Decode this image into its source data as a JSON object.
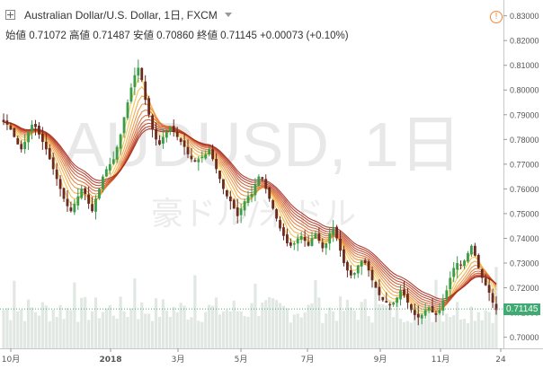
{
  "header": {
    "symbol_title": "Australian Dollar/U.S. Dollar, 1日, FXCM",
    "open_label": "始値",
    "open_value": "0.71072",
    "high_label": "高値",
    "high_value": "0.71487",
    "low_label": "安値",
    "low_value": "0.70860",
    "close_label": "終値",
    "close_value": "0.71145",
    "change": "+0.00073 (+0.10%)"
  },
  "watermark": {
    "line1": "AUDUSD, 1日",
    "line2": "豪ドル/米ドル"
  },
  "icons": {
    "expand": "expand-icon",
    "alert": "alert-icon"
  },
  "colors": {
    "up": "#3b9c4a",
    "down": "#6b2a22",
    "last_price": "#3faa72",
    "ribbon_fast": "#f7d04a",
    "ribbon_slow": "#a8291c",
    "volume": "#d9e2dc"
  },
  "chart_data": {
    "type": "candlestick",
    "title": "Australian Dollar/U.S. Dollar, 1日, FXCM",
    "y_axis_ticks": [
      "0.83000",
      "0.82000",
      "0.81000",
      "0.80000",
      "0.79000",
      "0.78000",
      "0.77000",
      "0.76000",
      "0.75000",
      "0.74000",
      "0.73000",
      "0.72000",
      "0.71000",
      "0.70000"
    ],
    "ylim": [
      0.6955,
      0.8335
    ],
    "x_axis_ticks": [
      "10月",
      "2018",
      "3月",
      "5月",
      "7月",
      "9月",
      "11月",
      "24"
    ],
    "last_price": "0.71145",
    "last_price_value": 0.71145,
    "closes_approx": [
      0.787,
      0.786,
      0.784,
      0.781,
      0.778,
      0.776,
      0.779,
      0.783,
      0.786,
      0.785,
      0.782,
      0.779,
      0.776,
      0.772,
      0.768,
      0.764,
      0.76,
      0.756,
      0.753,
      0.751,
      0.754,
      0.757,
      0.76,
      0.758,
      0.754,
      0.751,
      0.756,
      0.76,
      0.765,
      0.768,
      0.77,
      0.772,
      0.777,
      0.782,
      0.789,
      0.795,
      0.801,
      0.806,
      0.809,
      0.804,
      0.796,
      0.79,
      0.784,
      0.78,
      0.778,
      0.781,
      0.783,
      0.785,
      0.783,
      0.781,
      0.779,
      0.777,
      0.774,
      0.772,
      0.771,
      0.772,
      0.773,
      0.774,
      0.776,
      0.772,
      0.768,
      0.764,
      0.76,
      0.757,
      0.755,
      0.752,
      0.749,
      0.752,
      0.755,
      0.757,
      0.758,
      0.762,
      0.765,
      0.764,
      0.76,
      0.756,
      0.752,
      0.748,
      0.744,
      0.741,
      0.738,
      0.737,
      0.738,
      0.74,
      0.741,
      0.739,
      0.737,
      0.74,
      0.742,
      0.739,
      0.736,
      0.738,
      0.742,
      0.744,
      0.74,
      0.735,
      0.73,
      0.727,
      0.725,
      0.726,
      0.729,
      0.731,
      0.73,
      0.727,
      0.723,
      0.72,
      0.717,
      0.715,
      0.714,
      0.713,
      0.714,
      0.716,
      0.719,
      0.717,
      0.714,
      0.711,
      0.709,
      0.708,
      0.709,
      0.711,
      0.712,
      0.71,
      0.709,
      0.711,
      0.715,
      0.719,
      0.724,
      0.728,
      0.73,
      0.729,
      0.731,
      0.734,
      0.737,
      0.733,
      0.728,
      0.724,
      0.721,
      0.718,
      0.714,
      0.711
    ]
  }
}
